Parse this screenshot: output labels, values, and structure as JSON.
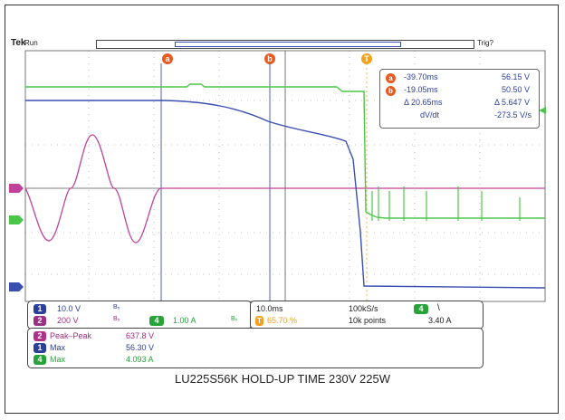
{
  "header": {
    "brand": "Tek",
    "run_state": "Run",
    "trigger_state": "Trig?"
  },
  "cursors": {
    "a": "a",
    "b": "b",
    "t": "T"
  },
  "cursor_readout": {
    "a_time": "-39.70ms",
    "a_value": "56.15 V",
    "b_time": "-19.05ms",
    "b_value": "50.50 V",
    "delta_time": "Δ 20.65ms",
    "delta_value": "Δ 5.647 V",
    "rate_label": "dV/dt",
    "rate_value": "-273.5 V/s"
  },
  "channel_settings": {
    "ch1_label": "1",
    "ch1_scale": "10.0 V",
    "ch1_bw": "B₅",
    "ch2_label": "2",
    "ch2_scale": "200 V",
    "ch2_bw": "B₅",
    "ch4_label": "4",
    "ch4_scale": "1.00 A",
    "ch4_bw": "B₅"
  },
  "timebase": {
    "scale": "10.0ms",
    "sample_rate": "100kS/s",
    "trigger_pos": "65.70 %",
    "record_length": "10k points",
    "trigger_ch": "4",
    "trigger_slope": "\\",
    "trigger_level": "3.40 A"
  },
  "measurements": [
    {
      "ch": "2",
      "name": "Peak–Peak",
      "value": "637.8 V",
      "color": "#b0308a",
      "text_color": "#a02a80"
    },
    {
      "ch": "1",
      "name": "Max",
      "value": "56.30 V",
      "color": "#2a3f9e",
      "text_color": "#2a3f9e"
    },
    {
      "ch": "4",
      "name": "Max",
      "value": "4.093 A",
      "color": "#27a33a",
      "text_color": "#27a33a"
    }
  ],
  "markers": {
    "ref2": "2",
    "ref4": "4",
    "ref1": "1",
    "ref4_right": "4"
  },
  "caption": "LU225S56K HOLD-UP TIME 230V 225W",
  "colors": {
    "ch1": "#3a4fb0",
    "ch2": "#c0409a",
    "ch4": "#4cc64a",
    "cursor": "#e85a1e",
    "trigger": "#f2a21c"
  }
}
